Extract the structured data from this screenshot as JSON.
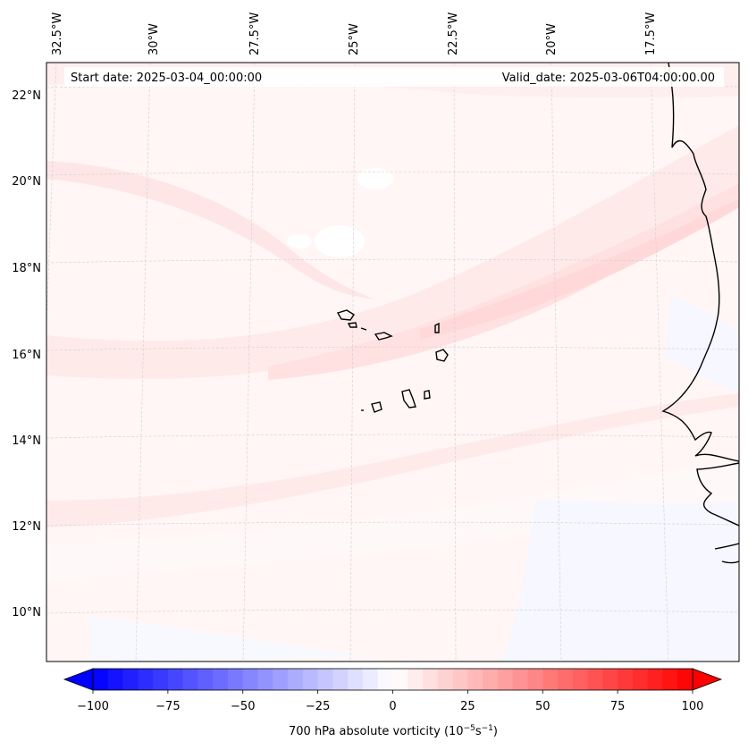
{
  "map": {
    "start_date": "Start date: 2025-03-04_00:00:00",
    "valid_date": "Valid_date: 2025-03-06T04:00:00.00",
    "lon_labels": [
      "32.5°W",
      "30°W",
      "27.5°W",
      "25°W",
      "22.5°W",
      "20°W",
      "17.5°W"
    ],
    "lat_labels": [
      "22°N",
      "20°N",
      "18°N",
      "16°N",
      "14°N",
      "12°N",
      "10°N"
    ],
    "field": "700 hPa absolute vorticity"
  },
  "colorbar": {
    "label_main": "700 hPa absolute vorticity (10",
    "label_exp1": "−5",
    "label_mid": "s",
    "label_exp2": "−1",
    "label_end": ")",
    "ticks": [
      "−100",
      "−75",
      "−50",
      "−25",
      "0",
      "25",
      "50",
      "75",
      "100"
    ],
    "min": -100,
    "max": 100,
    "levels": 40,
    "cmap": "bwr"
  }
}
